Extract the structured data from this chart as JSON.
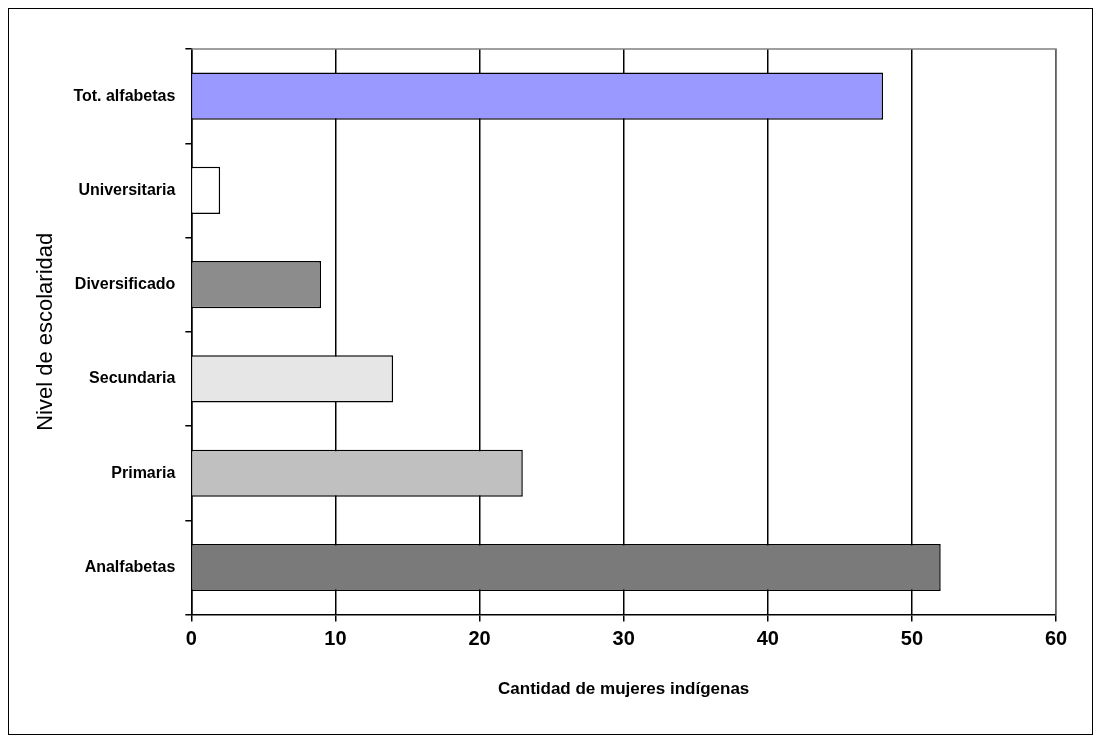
{
  "chart_data": {
    "type": "bar",
    "orientation": "horizontal",
    "categories": [
      "Tot. alfabetas",
      "Universitaria",
      "Diversificado",
      "Secundaria",
      "Primaria",
      "Analfabetas"
    ],
    "values": [
      48,
      2,
      9,
      14,
      23,
      52
    ],
    "colors": [
      "#9999ff",
      "#ffffff",
      "#8c8c8c",
      "#e6e6e6",
      "#c0c0c0",
      "#7a7a7a"
    ],
    "xlim": [
      0,
      60
    ],
    "xticks": [
      0,
      10,
      20,
      30,
      40,
      50,
      60
    ],
    "xlabel": "Cantidad de mujeres indígenas",
    "ylabel": "Nivel de escolaridad",
    "grid": "x",
    "legend": false
  }
}
